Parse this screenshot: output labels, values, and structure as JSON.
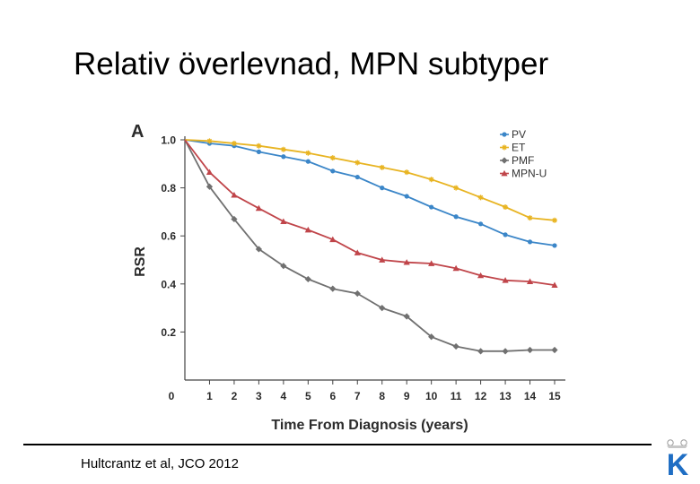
{
  "slide": {
    "title": "Relativ överlevnad, MPN subtyper",
    "citation": "Hultcrantz et al, JCO 2012"
  },
  "logo": {
    "letter": "K",
    "icon": "crown-k-logo-icon",
    "color": "#1f6ec4"
  },
  "chart_data": {
    "type": "line",
    "panel_label": "A",
    "title": "",
    "xlabel": "Time From Diagnosis (years)",
    "ylabel": "RSR",
    "xlim": [
      0,
      15
    ],
    "ylim": [
      0,
      1.0
    ],
    "grid": false,
    "legend_position": "top-right",
    "x": [
      0,
      1,
      2,
      3,
      4,
      5,
      6,
      7,
      8,
      9,
      10,
      11,
      12,
      13,
      14,
      15
    ],
    "x_tick_labels": [
      "0",
      "1",
      "2",
      "3",
      "4",
      "5",
      "6",
      "7",
      "8",
      "9",
      "10",
      "11",
      "12",
      "13",
      "14",
      "15"
    ],
    "y_ticks": [
      0.2,
      0.4,
      0.6,
      0.8,
      1.0
    ],
    "y_tick_labels": [
      "0.2",
      "0.4",
      "0.6",
      "0.8",
      "1.0"
    ],
    "series": [
      {
        "name": "PV",
        "color": "#3b86c8",
        "marker": "circle",
        "values": [
          1.0,
          0.985,
          0.975,
          0.95,
          0.93,
          0.91,
          0.87,
          0.845,
          0.8,
          0.765,
          0.72,
          0.68,
          0.65,
          0.605,
          0.575,
          0.56
        ]
      },
      {
        "name": "ET",
        "color": "#e8b422",
        "marker": "star",
        "values": [
          1.0,
          0.995,
          0.985,
          0.975,
          0.96,
          0.945,
          0.925,
          0.905,
          0.885,
          0.865,
          0.835,
          0.8,
          0.76,
          0.72,
          0.675,
          0.665
        ]
      },
      {
        "name": "PMF",
        "color": "#707070",
        "marker": "diamond",
        "values": [
          1.0,
          0.805,
          0.67,
          0.545,
          0.475,
          0.42,
          0.38,
          0.36,
          0.3,
          0.265,
          0.18,
          0.14,
          0.12,
          0.12,
          0.125,
          0.125
        ]
      },
      {
        "name": "MPN-U",
        "color": "#c0454a",
        "marker": "triangle",
        "values": [
          1.0,
          0.865,
          0.77,
          0.715,
          0.66,
          0.625,
          0.585,
          0.53,
          0.5,
          0.49,
          0.485,
          0.465,
          0.435,
          0.415,
          0.41,
          0.395
        ]
      }
    ]
  }
}
